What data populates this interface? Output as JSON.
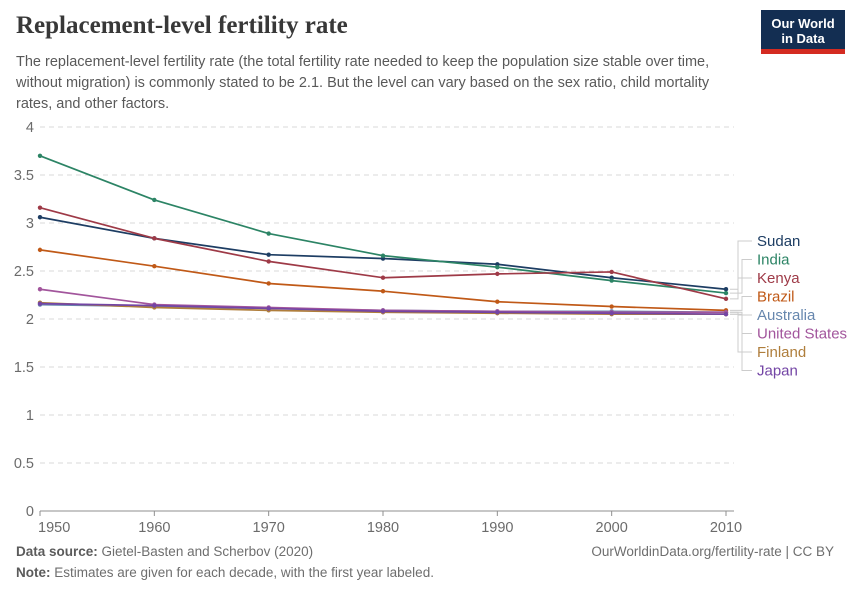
{
  "header": {
    "title": "Replacement-level fertility rate",
    "subtitle_lines": [
      "The replacement-level fertility rate (the total fertility rate needed to keep the population size stable over time,",
      "without migration) is commonly stated to be 2.1. But the level can vary based on the sex ratio, child mortality",
      "rates, and other factors."
    ],
    "logo": {
      "line1": "Our World",
      "line2": "in Data",
      "bg_color": "#132E52",
      "stripe_color": "#D42B21"
    }
  },
  "chart_data": {
    "type": "line",
    "title": "Replacement-level fertility rate",
    "x": [
      1950,
      1960,
      1970,
      1980,
      1990,
      2000,
      2010
    ],
    "xticks": [
      1950,
      1960,
      1970,
      1980,
      1990,
      2000,
      2010
    ],
    "yticks": [
      0,
      0.5,
      1,
      1.5,
      2,
      2.5,
      3,
      3.5,
      4
    ],
    "ylim": [
      0,
      4
    ],
    "grid": true,
    "legend_position": "right",
    "series": [
      {
        "name": "Sudan",
        "color": "#1D3D63",
        "values": [
          3.06,
          2.84,
          2.67,
          2.63,
          2.57,
          2.43,
          2.31
        ]
      },
      {
        "name": "India",
        "color": "#2C8465",
        "values": [
          3.7,
          3.24,
          2.89,
          2.66,
          2.54,
          2.4,
          2.27
        ]
      },
      {
        "name": "Kenya",
        "color": "#9E3A47",
        "values": [
          3.16,
          2.84,
          2.6,
          2.43,
          2.47,
          2.49,
          2.21
        ]
      },
      {
        "name": "Brazil",
        "color": "#C05917",
        "values": [
          2.72,
          2.55,
          2.37,
          2.29,
          2.18,
          2.13,
          2.09
        ]
      },
      {
        "name": "Australia",
        "color": "#6787AE",
        "values": [
          2.15,
          2.13,
          2.11,
          2.09,
          2.08,
          2.08,
          2.07
        ]
      },
      {
        "name": "United States",
        "color": "#A2559C",
        "values": [
          2.31,
          2.15,
          2.12,
          2.09,
          2.08,
          2.07,
          2.07
        ]
      },
      {
        "name": "Finland",
        "color": "#AF7E3C",
        "values": [
          2.17,
          2.12,
          2.09,
          2.07,
          2.06,
          2.05,
          2.05
        ]
      },
      {
        "name": "Japan",
        "color": "#7345A5",
        "values": [
          2.16,
          2.14,
          2.11,
          2.08,
          2.07,
          2.06,
          2.05
        ]
      }
    ]
  },
  "footer": {
    "source_label": "Data source:",
    "source_text": " Gietel-Basten and Scherbov (2020)",
    "note_label": "Note:",
    "note_text": " Estimates are given for each decade, with the first year labeled.",
    "credit": "OurWorldinData.org/fertility-rate | CC BY"
  }
}
